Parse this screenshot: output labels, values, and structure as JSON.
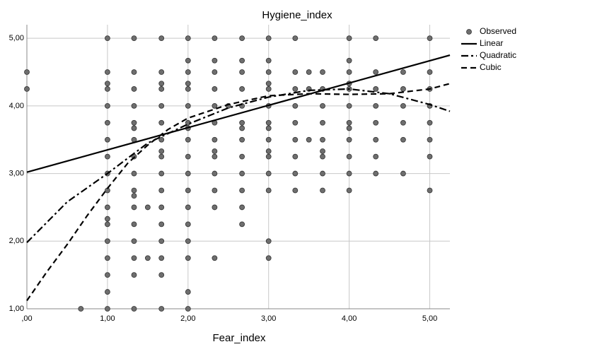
{
  "chart_data": {
    "type": "scatter",
    "title": "Hygiene_index",
    "x_label": "Fear_index",
    "xlim": [
      0,
      5.25
    ],
    "ylim": [
      1,
      5.2
    ],
    "xticks": [
      {
        "value": 0,
        "label": ",00"
      },
      {
        "value": 1,
        "label": "1,00"
      },
      {
        "value": 2,
        "label": "2,00"
      },
      {
        "value": 3,
        "label": "3,00"
      },
      {
        "value": 4,
        "label": "4,00"
      },
      {
        "value": 5,
        "label": "5,00"
      }
    ],
    "yticks": [
      {
        "value": 1,
        "label": "1,00"
      },
      {
        "value": 2,
        "label": "2,00"
      },
      {
        "value": 3,
        "label": "3,00"
      },
      {
        "value": 4,
        "label": "4,00"
      },
      {
        "value": 5,
        "label": "5,00"
      }
    ],
    "grid": true,
    "legend": "right",
    "series": [
      {
        "name": "Observed",
        "color": "#6e6e6e",
        "style": "markers",
        "x": [
          0,
          0,
          0.67,
          1,
          1,
          1,
          1,
          1,
          1,
          1,
          1,
          1,
          1,
          1,
          1,
          1,
          1,
          1,
          1,
          1,
          1,
          1.33,
          1.33,
          1.33,
          1.33,
          1.33,
          1.33,
          1.33,
          1.33,
          1.33,
          1.33,
          1.33,
          1.33,
          1.33,
          1.33,
          1.33,
          1.33,
          1.33,
          1.5,
          1.5,
          1.67,
          1.67,
          1.67,
          1.67,
          1.67,
          1.67,
          1.67,
          1.67,
          1.67,
          1.67,
          1.67,
          1.67,
          1.67,
          1.67,
          1.67,
          1.67,
          1.67,
          2,
          2,
          2,
          2,
          2,
          2,
          2,
          2,
          2,
          2,
          2,
          2,
          2,
          2,
          2,
          2,
          2,
          2,
          2.33,
          2.33,
          2.33,
          2.33,
          2.33,
          2.33,
          2.33,
          2.33,
          2.33,
          2.33,
          2.33,
          2.33,
          2.33,
          2.5,
          2.67,
          2.67,
          2.67,
          2.67,
          2.67,
          2.67,
          2.67,
          2.67,
          2.67,
          2.67,
          2.67,
          2.67,
          2.67,
          3,
          3,
          3,
          3,
          3,
          3,
          3,
          3,
          3,
          3,
          3,
          3,
          3,
          3,
          3,
          3.33,
          3.33,
          3.33,
          3.33,
          3.33,
          3.33,
          3.33,
          3.33,
          3.33,
          3.5,
          3.5,
          3.5,
          3.67,
          3.67,
          3.67,
          3.67,
          3.67,
          3.67,
          3.67,
          3.67,
          3.67,
          4,
          4,
          4,
          4,
          4,
          4,
          4,
          4,
          4,
          4,
          4,
          4,
          4.33,
          4.33,
          4.33,
          4.33,
          4.33,
          4.33,
          4.33,
          4.33,
          4.67,
          4.67,
          4.67,
          4.67,
          4.67,
          4.67,
          5,
          5,
          5,
          5,
          5,
          5,
          5,
          5
        ],
        "values": [
          4.5,
          4.25,
          1,
          5,
          4.5,
          4.33,
          4.25,
          4,
          3.75,
          3.5,
          3.25,
          3,
          2.75,
          2.5,
          2.33,
          2.25,
          2,
          1.75,
          1.5,
          1.25,
          1,
          5,
          4.5,
          4.25,
          4,
          3.75,
          3.67,
          3.5,
          3.25,
          3,
          2.75,
          2.67,
          2.5,
          2.25,
          2,
          1.75,
          1.5,
          1,
          2.5,
          1.75,
          5,
          4.5,
          4.33,
          4.25,
          4,
          3.75,
          3.5,
          3.33,
          3.25,
          3,
          2.75,
          2.5,
          2.25,
          2,
          1.75,
          1.5,
          1,
          5,
          4.67,
          4.5,
          4.33,
          4.25,
          4,
          3.75,
          3.67,
          3.5,
          3.25,
          3,
          2.75,
          2.5,
          2.25,
          2,
          1.75,
          1.25,
          1,
          5,
          4.67,
          4.5,
          4.25,
          4,
          3.75,
          3.5,
          3.33,
          3.25,
          3,
          2.75,
          2.5,
          1.75,
          4,
          5,
          4.67,
          4.5,
          4.25,
          4,
          3.75,
          3.67,
          3.5,
          3.25,
          3,
          2.75,
          2.5,
          2.25,
          5,
          4.67,
          4.5,
          4.33,
          4.25,
          4,
          3.75,
          3.67,
          3.5,
          3.33,
          3.25,
          3,
          2.75,
          2,
          1.75,
          5,
          4.5,
          4.25,
          4,
          3.75,
          3.5,
          3.25,
          3,
          2.75,
          4.5,
          4.25,
          3.5,
          4.5,
          4.25,
          4,
          3.75,
          3.5,
          3.33,
          3.25,
          3,
          2.75,
          5,
          4.67,
          4.5,
          4.33,
          4.25,
          4,
          3.75,
          3.67,
          3.5,
          3.25,
          3,
          2.75,
          5,
          4.5,
          4.25,
          4,
          3.75,
          3.5,
          3.25,
          3,
          4.5,
          4.25,
          4,
          3.75,
          3.5,
          3,
          5,
          4.5,
          4.25,
          4,
          3.75,
          3.5,
          3.25,
          2.75
        ]
      },
      {
        "name": "Linear",
        "color": "#000000",
        "style": "solid",
        "x": [
          0,
          5.25
        ],
        "values": [
          3.02,
          4.75
        ]
      },
      {
        "name": "Quadratic",
        "color": "#000000",
        "style": "dashdot",
        "x": [
          0,
          0.5,
          1,
          1.5,
          2,
          2.5,
          3,
          3.5,
          4,
          4.5,
          5,
          5.25
        ],
        "values": [
          1.98,
          2.58,
          3.0,
          3.45,
          3.73,
          3.97,
          4.13,
          4.23,
          4.25,
          4.18,
          4.02,
          3.92
        ]
      },
      {
        "name": "Cubic",
        "color": "#000000",
        "style": "dash",
        "x": [
          0,
          0.25,
          0.5,
          0.75,
          1,
          1.25,
          1.5,
          1.75,
          2,
          2.5,
          3,
          3.5,
          4,
          4.5,
          5,
          5.25
        ],
        "values": [
          1.12,
          1.55,
          1.95,
          2.38,
          2.78,
          3.15,
          3.42,
          3.65,
          3.82,
          4.02,
          4.15,
          4.18,
          4.17,
          4.18,
          4.25,
          4.33
        ]
      }
    ]
  }
}
